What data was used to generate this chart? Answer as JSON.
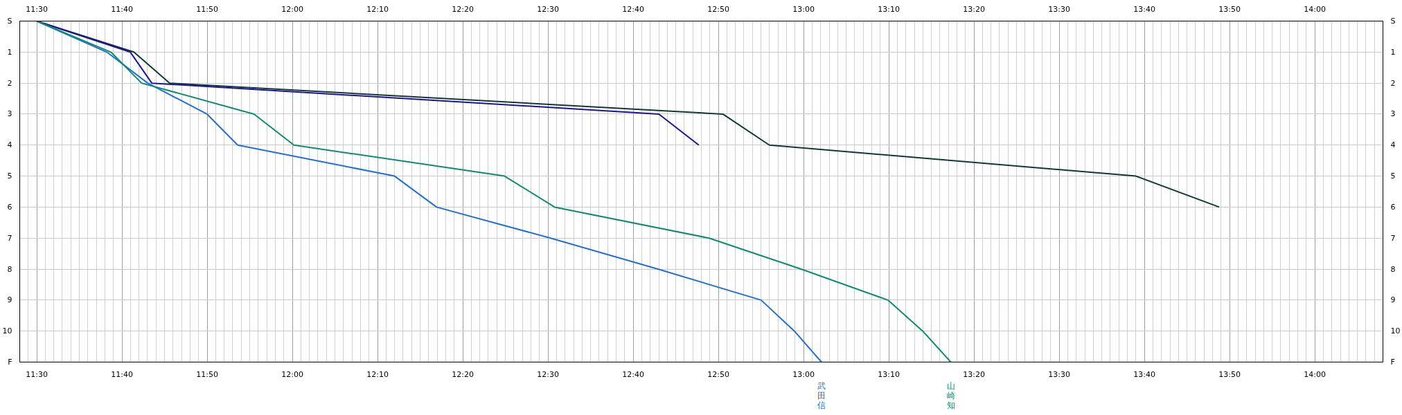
{
  "chart_data": {
    "type": "line",
    "grid": true,
    "marker": "none",
    "line_style": "solid",
    "xlim": [
      11.4667,
      14.1333
    ],
    "x2lim": [
      11.4667,
      14.1333
    ],
    "ylim": [
      11,
      0
    ],
    "y2lim": [
      11,
      0
    ],
    "xticks": [
      {
        "value": 11.5,
        "label": "11:30"
      },
      {
        "value": 11.6667,
        "label": "11:40"
      },
      {
        "value": 11.8333,
        "label": "11:50"
      },
      {
        "value": 12.0,
        "label": "12:00"
      },
      {
        "value": 12.1667,
        "label": "12:10"
      },
      {
        "value": 12.3333,
        "label": "12:20"
      },
      {
        "value": 12.5,
        "label": "12:30"
      },
      {
        "value": 12.6667,
        "label": "12:40"
      },
      {
        "value": 12.8333,
        "label": "12:50"
      },
      {
        "value": 13.0,
        "label": "13:00"
      },
      {
        "value": 13.1667,
        "label": "13:10"
      },
      {
        "value": 13.3333,
        "label": "13:20"
      },
      {
        "value": 13.5,
        "label": "13:30"
      },
      {
        "value": 13.6667,
        "label": "13:40"
      },
      {
        "value": 13.8333,
        "label": "13:50"
      },
      {
        "value": 14.0,
        "label": "14:00"
      }
    ],
    "x2ticks": [
      {
        "value": 11.5,
        "label": "11:30"
      },
      {
        "value": 11.6667,
        "label": "11:40"
      },
      {
        "value": 11.8333,
        "label": "11:50"
      },
      {
        "value": 12.0,
        "label": "12:00"
      },
      {
        "value": 12.1667,
        "label": "12:10"
      },
      {
        "value": 12.3333,
        "label": "12:20"
      },
      {
        "value": 12.5,
        "label": "12:30"
      },
      {
        "value": 12.6667,
        "label": "12:40"
      },
      {
        "value": 12.8333,
        "label": "12:50"
      },
      {
        "value": 13.0,
        "label": "13:00"
      },
      {
        "value": 13.1667,
        "label": "13:10"
      },
      {
        "value": 13.3333,
        "label": "13:20"
      },
      {
        "value": 13.5,
        "label": "13:30"
      },
      {
        "value": 13.6667,
        "label": "13:40"
      },
      {
        "value": 13.8333,
        "label": "13:50"
      },
      {
        "value": 14.0,
        "label": "14:00"
      }
    ],
    "yticks": [
      {
        "value": 0,
        "label": "S"
      },
      1,
      2,
      3,
      4,
      5,
      6,
      7,
      8,
      9,
      10,
      {
        "value": 11,
        "label": "F"
      }
    ],
    "y2ticks": [
      {
        "value": 0,
        "label": "S"
      },
      1,
      2,
      3,
      4,
      5,
      6,
      7,
      8,
      9,
      10,
      {
        "value": 11,
        "label": "F"
      }
    ],
    "series": [
      {
        "color": "#0b3b33",
        "x": [
          11.5,
          11.69,
          11.76,
          12.842,
          12.933,
          13.65,
          13.813
        ],
        "values": [
          0,
          1,
          2,
          3,
          4,
          5,
          6
        ]
      },
      {
        "color": "#2010a0",
        "x": [
          11.5,
          11.683,
          11.725,
          12.717,
          12.795
        ],
        "values": [
          0,
          1,
          2,
          3,
          4
        ]
      },
      {
        "name": "武田信",
        "color": "#1e6fdc",
        "x": [
          11.5,
          11.637,
          11.717,
          11.833,
          11.893,
          12.2,
          12.282,
          12.505,
          12.715,
          12.917,
          12.982,
          13.035
        ],
        "values": [
          0,
          1,
          2,
          3,
          4,
          5,
          6,
          7,
          8,
          9,
          10,
          11
        ]
      },
      {
        "name": "山崎知",
        "color": "#0c8c6e",
        "x": [
          11.5,
          11.645,
          11.705,
          11.925,
          12.003,
          12.415,
          12.513,
          12.815,
          12.995,
          13.165,
          13.233,
          13.288
        ],
        "values": [
          0,
          1,
          2,
          3,
          4,
          5,
          6,
          7,
          8,
          9,
          10,
          11
        ]
      }
    ]
  }
}
